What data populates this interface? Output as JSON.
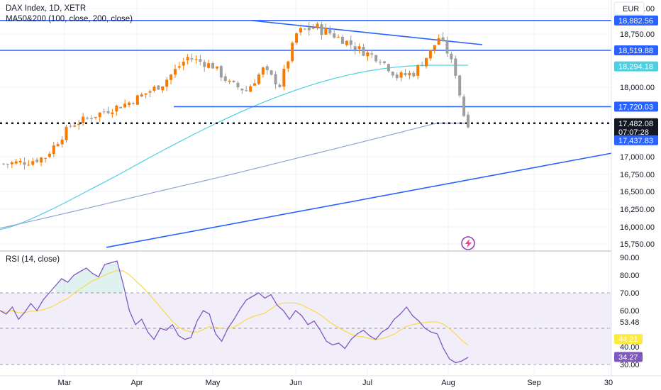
{
  "chart_data": {
    "type": "candlestick",
    "title": "DAX Index, 1D, XETR",
    "indicator_label": "MA50&200 (100, close, 200, close)",
    "currency": "EUR",
    "x_ticks": [
      "Mar",
      "Apr",
      "May",
      "Jun",
      "Jul",
      "Aug",
      "Sep",
      "30"
    ],
    "price_axis": {
      "ylim": [
        15650,
        19000
      ],
      "ticks": [
        "19,000.00",
        "18,750.00",
        "18,000.00",
        "17,000.00",
        "16,750.00",
        "16,500.00",
        "16,250.00",
        "16,000.00",
        "15,750.00"
      ]
    },
    "price_tags": [
      {
        "text": "18,882.56",
        "kind": "line"
      },
      {
        "text": "18,519.88",
        "kind": "line"
      },
      {
        "text": "18,294.18",
        "kind": "ma"
      },
      {
        "text": "17,720.03",
        "kind": "line"
      },
      {
        "text": "17,482.08",
        "kind": "last"
      },
      {
        "text": "07:07:28",
        "kind": "countdown"
      },
      {
        "text": "17,437.83",
        "kind": "line"
      }
    ],
    "horizontal_levels": [
      18882.56,
      18519.88,
      17720.03
    ],
    "current_price": 17482.08,
    "rsi": {
      "label": "RSI (14, close)",
      "ylim": [
        27,
        92
      ],
      "ticks": [
        "90.00",
        "80.00",
        "70.00",
        "60.00",
        "53.48",
        "43.10",
        "40.00",
        "30.00"
      ],
      "value_tags": [
        {
          "text": "44.21",
          "kind": "ma"
        },
        {
          "text": "34.27",
          "kind": "rsi"
        }
      ],
      "overbought": 70,
      "oversold": 30,
      "values": [
        60,
        58,
        62,
        55,
        59,
        64,
        60,
        66,
        70,
        74,
        78,
        76,
        80,
        82,
        84,
        81,
        79,
        86,
        87,
        88,
        75,
        60,
        52,
        55,
        48,
        44,
        50,
        49,
        52,
        46,
        44,
        45,
        54,
        60,
        58,
        47,
        43,
        50,
        55,
        61,
        66,
        68,
        70,
        67,
        69,
        63,
        60,
        55,
        60,
        57,
        52,
        54,
        49,
        43,
        41,
        42,
        39,
        44,
        47,
        49,
        46,
        44,
        48,
        50,
        55,
        58,
        62,
        57,
        54,
        50,
        48,
        47,
        39,
        33,
        31,
        32,
        34
      ]
    }
  },
  "watermark_icon": "lightning-icon"
}
